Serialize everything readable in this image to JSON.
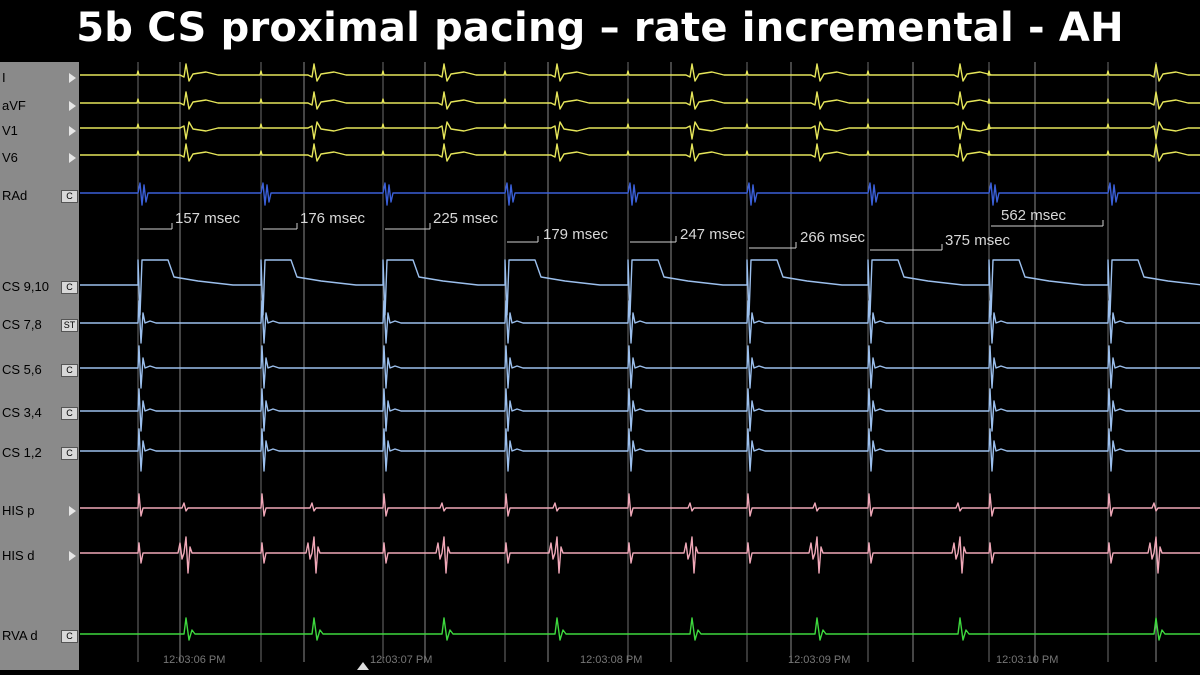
{
  "title": "5b CS proximal pacing – rate incremental - AH",
  "channels": [
    {
      "label": "I",
      "color": "#e6e65a",
      "kind": "ecg",
      "box": "",
      "marker": true
    },
    {
      "label": "aVF",
      "color": "#e6e65a",
      "kind": "ecg",
      "box": "",
      "marker": true
    },
    {
      "label": "V1",
      "color": "#e6e65a",
      "kind": "ecg",
      "box": "",
      "marker": true
    },
    {
      "label": "V6",
      "color": "#e6e65a",
      "kind": "ecg",
      "box": "",
      "marker": true
    },
    {
      "label": "RAd",
      "color": "#3a5fd8",
      "kind": "rad",
      "box": "C",
      "marker": false
    },
    {
      "label": "CS 9,10",
      "color": "#9cc0ee",
      "kind": "stim",
      "box": "C",
      "marker": false
    },
    {
      "label": "CS 7,8",
      "color": "#9cc0ee",
      "kind": "cs",
      "box": "ST",
      "marker": false
    },
    {
      "label": "CS 5,6",
      "color": "#9cc0ee",
      "kind": "cs",
      "box": "C",
      "marker": false
    },
    {
      "label": "CS 3,4",
      "color": "#9cc0ee",
      "kind": "cs",
      "box": "C",
      "marker": false
    },
    {
      "label": "CS 1,2",
      "color": "#9cc0ee",
      "kind": "cs",
      "box": "C",
      "marker": false
    },
    {
      "label": "HIS p",
      "color": "#f0a8b8",
      "kind": "hisp",
      "box": "",
      "marker": true
    },
    {
      "label": "HIS d",
      "color": "#f0a8b8",
      "kind": "hisd",
      "box": "",
      "marker": true
    },
    {
      "label": "RVA d",
      "color": "#3ed83e",
      "kind": "rva",
      "box": "C",
      "marker": false
    }
  ],
  "measurements": [
    "157 msec",
    "176 msec",
    "225 msec",
    "179 msec",
    "247 msec",
    "266 msec",
    "375 msec",
    "562 msec"
  ],
  "timestamps": [
    "12:03:06 PM",
    "12:03:07 PM",
    "12:03:08 PM",
    "12:03:09 PM",
    "12:03:10 PM"
  ],
  "colors": {
    "background": "#000000",
    "sidebar": "#8a8a8a",
    "gridline": "#8a8a8a",
    "caliper": "#cfcfcf"
  }
}
